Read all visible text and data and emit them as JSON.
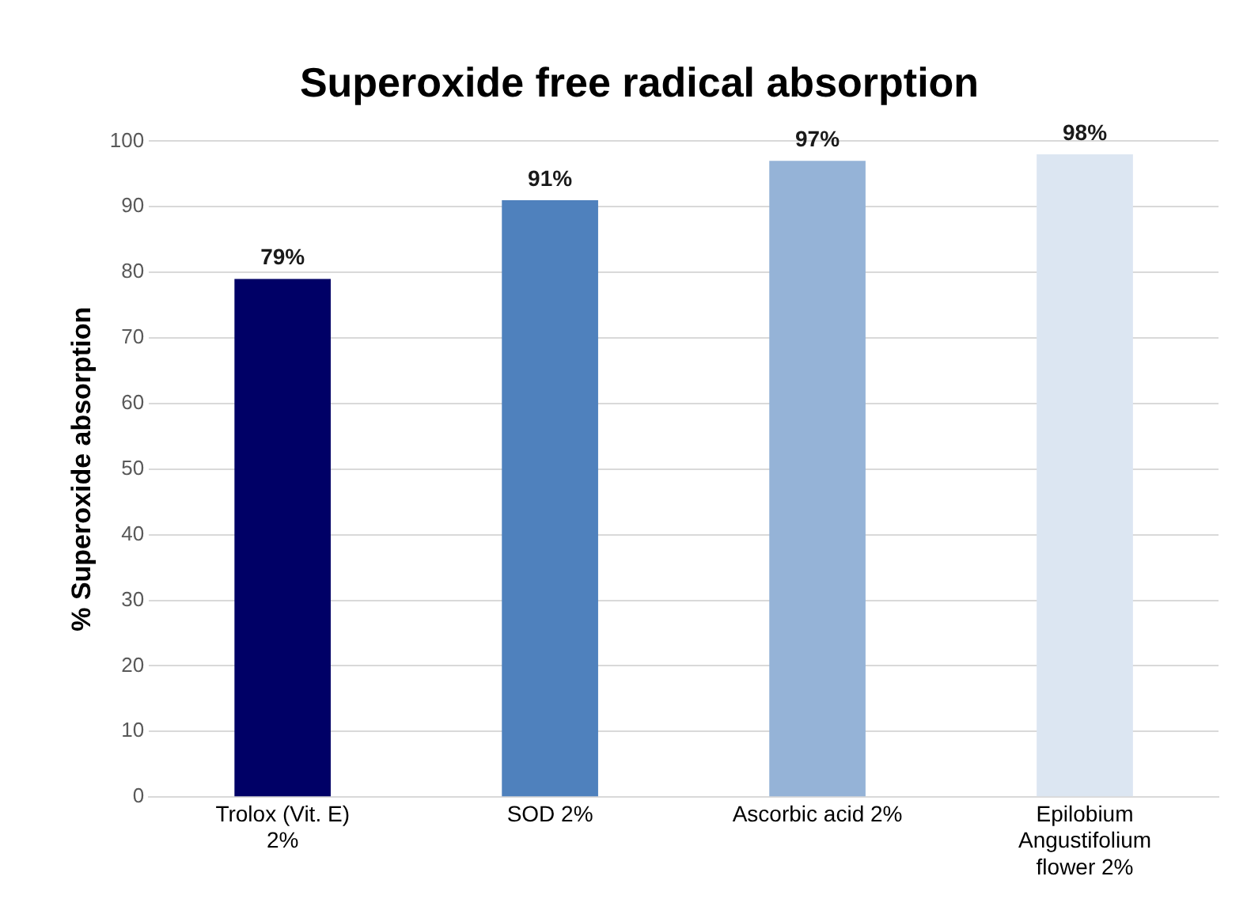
{
  "chart_data": {
    "type": "bar",
    "title": "Superoxide free radical absorption",
    "ylabel": "% Superoxide absorption",
    "categories": [
      "Trolox (Vit. E) 2%",
      "SOD 2%",
      "Ascorbic acid 2%",
      "Epilobium Angustifolium flower 2%"
    ],
    "values": [
      79,
      91,
      97,
      98
    ],
    "colors": [
      "#000066",
      "#4f81bd",
      "#95b3d7",
      "#dce6f2"
    ],
    "value_labels": [
      "79%",
      "91%",
      "97%",
      "98%"
    ],
    "ylim": [
      0,
      100
    ],
    "yticks": [
      0,
      10,
      20,
      30,
      40,
      50,
      60,
      70,
      80,
      90,
      100
    ],
    "grid": "y"
  }
}
